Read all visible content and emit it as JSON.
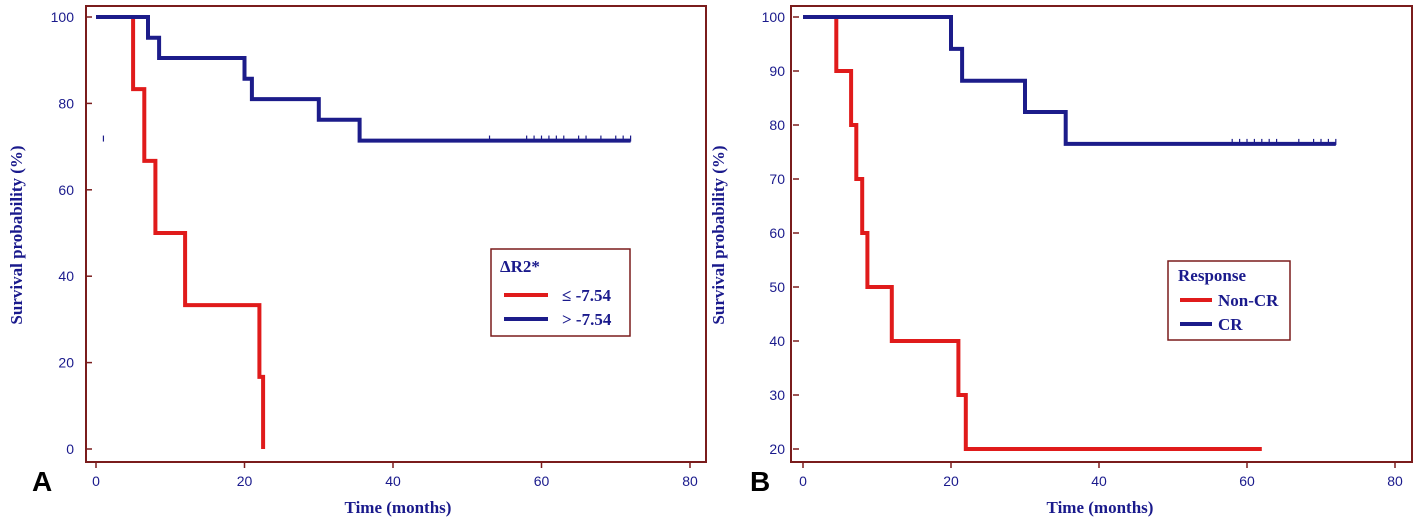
{
  "chart_data": [
    {
      "type": "line",
      "panel_label": "A",
      "xlabel": "Time (months)",
      "ylabel": "Survival probability (%)",
      "xlim": [
        0,
        80
      ],
      "ylim": [
        0,
        100
      ],
      "xticks": [
        0,
        20,
        40,
        60,
        80
      ],
      "yticks": [
        0,
        20,
        40,
        60,
        80,
        100
      ],
      "grid": false,
      "legend": {
        "title": "ΔR2*",
        "placement": "middle-right"
      },
      "series": [
        {
          "name": "≤ -7.54",
          "color": "#e01b1b",
          "steps": [
            [
              0,
              100
            ],
            [
              5,
              100
            ],
            [
              5,
              83.3
            ],
            [
              6.5,
              83.3
            ],
            [
              6.5,
              66.7
            ],
            [
              8,
              66.7
            ],
            [
              8,
              50
            ],
            [
              12,
              50
            ],
            [
              12,
              33.3
            ],
            [
              22,
              33.3
            ],
            [
              22,
              16.7
            ],
            [
              22.5,
              16.7
            ],
            [
              22.5,
              0
            ]
          ],
          "censored": []
        },
        {
          "name": "> -7.54",
          "color": "#1c1c8a",
          "steps": [
            [
              0,
              100
            ],
            [
              7,
              100
            ],
            [
              7,
              95.2
            ],
            [
              8.5,
              95.2
            ],
            [
              8.5,
              90.5
            ],
            [
              20,
              90.5
            ],
            [
              20,
              85.7
            ],
            [
              21,
              85.7
            ],
            [
              21,
              81
            ],
            [
              30,
              81
            ],
            [
              30,
              76.2
            ],
            [
              35.5,
              76.2
            ],
            [
              35.5,
              71.4
            ],
            [
              72,
              71.4
            ]
          ],
          "censored": [
            1,
            53,
            58,
            59,
            60,
            61,
            62,
            63,
            65,
            66,
            68,
            70,
            71,
            72
          ]
        }
      ]
    },
    {
      "type": "line",
      "panel_label": "B",
      "xlabel": "Time (months)",
      "ylabel": "Survival probability (%)",
      "xlim": [
        0,
        80
      ],
      "ylim": [
        20,
        100
      ],
      "xticks": [
        0,
        20,
        40,
        60,
        80
      ],
      "yticks": [
        20,
        30,
        40,
        50,
        60,
        70,
        80,
        90,
        100
      ],
      "grid": false,
      "legend": {
        "title": "Response",
        "placement": "bottom-right"
      },
      "series": [
        {
          "name": "Non-CR",
          "color": "#e01b1b",
          "steps": [
            [
              0,
              100
            ],
            [
              4.5,
              100
            ],
            [
              4.5,
              90
            ],
            [
              6.5,
              90
            ],
            [
              6.5,
              80
            ],
            [
              7.2,
              80
            ],
            [
              7.2,
              70
            ],
            [
              8,
              70
            ],
            [
              8,
              60
            ],
            [
              8.7,
              60
            ],
            [
              8.7,
              50
            ],
            [
              12,
              50
            ],
            [
              12,
              40
            ],
            [
              21,
              40
            ],
            [
              21,
              30
            ],
            [
              22,
              30
            ],
            [
              22,
              20
            ],
            [
              62,
              20
            ]
          ],
          "censored": []
        },
        {
          "name": "CR",
          "color": "#1c1c8a",
          "steps": [
            [
              0,
              100
            ],
            [
              20,
              100
            ],
            [
              20,
              94.1
            ],
            [
              21.5,
              94.1
            ],
            [
              21.5,
              88.2
            ],
            [
              30,
              88.2
            ],
            [
              30,
              82.4
            ],
            [
              35.5,
              82.4
            ],
            [
              35.5,
              76.5
            ],
            [
              72,
              76.5
            ]
          ],
          "censored": [
            58,
            59,
            60,
            61,
            62,
            63,
            64,
            67,
            69,
            70,
            71,
            72
          ]
        }
      ]
    }
  ]
}
